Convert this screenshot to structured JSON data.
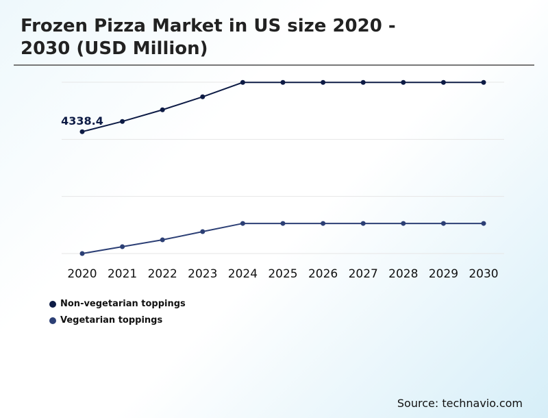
{
  "chart_data": {
    "type": "line",
    "title": "Frozen Pizza Market in US size 2020 - 2030 (USD Million)",
    "xlabel": "",
    "ylabel": "",
    "categories": [
      "2020",
      "2021",
      "2022",
      "2023",
      "2024",
      "2025",
      "2026",
      "2027",
      "2028",
      "2029",
      "2030"
    ],
    "series": [
      {
        "name": "Non-vegetarian toppings",
        "color": "#0d1b45",
        "values": [
          4338.4,
          4704,
          5118,
          5581,
          6093,
          6093,
          6093,
          6093,
          6093,
          6093,
          6093
        ]
      },
      {
        "name": "Vegetarian toppings",
        "color": "#2c3f75",
        "values": [
          0,
          244,
          487,
          780,
          1072,
          1072,
          1072,
          1072,
          1072,
          1072,
          1072
        ]
      }
    ],
    "data_labels": [
      {
        "series": 0,
        "index": 0,
        "text": "4338.4"
      }
    ],
    "ylim": [
      0,
      6100
    ],
    "grid": true,
    "legend": "bottom-left"
  },
  "source": "Source: technavio.com"
}
